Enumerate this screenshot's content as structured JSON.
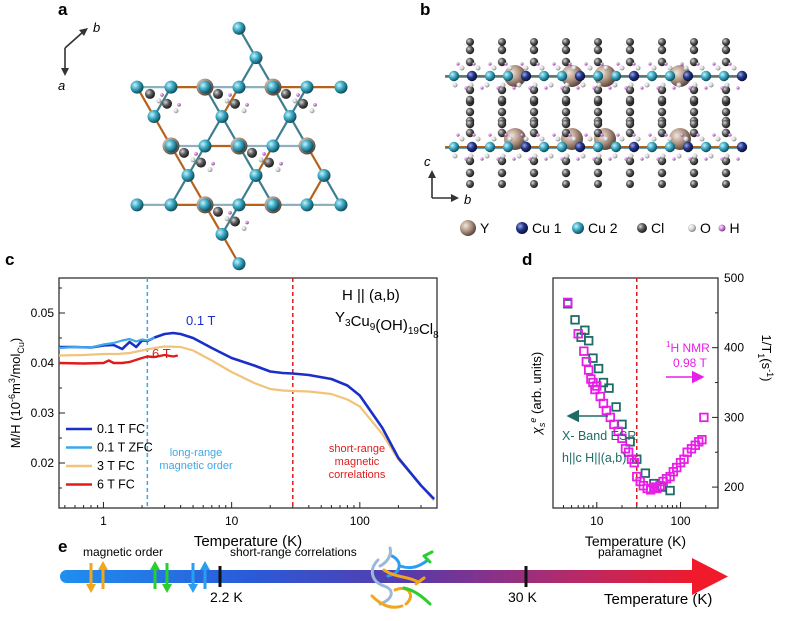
{
  "panels": {
    "a": {
      "letter": "a",
      "axes": {
        "b": "b",
        "a": "a"
      }
    },
    "b": {
      "letter": "b",
      "axes": {
        "c": "c",
        "b": "b"
      },
      "legend": [
        "Y",
        "Cu 1",
        "Cu 2",
        "Cl",
        "O",
        "H"
      ]
    },
    "c": {
      "letter": "c"
    },
    "d": {
      "letter": "d"
    },
    "e": {
      "letter": "e",
      "labels": {
        "magnetic_order": "magnetic order",
        "short_range": "short-range correlations",
        "paramagnet": "paramagnet",
        "t1": "2.2 K",
        "t2": "30 K",
        "axis": "Temperature (K)"
      }
    }
  },
  "colors": {
    "blue": "#1a2fc9",
    "lightblue": "#3da7e8",
    "tan": "#f0c47a",
    "red": "#e01b1b",
    "teal": "#1f6b66",
    "magenta": "#e81ee8",
    "cu1": "#1d2f7a",
    "cu2": "#3aa9c4",
    "y": "#a68c7a",
    "cl": "#555555",
    "o": "#cccccc",
    "h": "#c27bd0"
  },
  "chart_data": [
    {
      "panel": "c",
      "type": "line",
      "xscale": "log",
      "xlim": [
        0.45,
        400
      ],
      "ylim": [
        0.011,
        0.057
      ],
      "xticks": [
        1,
        10,
        100
      ],
      "xtick_labels": [
        "1",
        "10",
        "100"
      ],
      "yticks": [
        0.02,
        0.03,
        0.04,
        0.05
      ],
      "ytick_labels": [
        "0.02",
        "0.03",
        "0.04",
        "0.05"
      ],
      "xlabel": "Temperature (K)",
      "ylabel_main": "M/H (10",
      "ylabel_exp": "-6",
      "ylabel_mid": "m",
      "ylabel_exp2": "3",
      "ylabel_end": "/mol",
      "ylabel_sub": "Cu",
      "ylabel_close": ")",
      "title_line1": "H || (a,b)",
      "formula": "Y3Cu9(OH)19Cl8",
      "annotations": {
        "lro_line1": "long-range",
        "lro_line2": "magnetic order",
        "sro_line1": "short-range",
        "sro_line2": "magnetic",
        "sro_line3": "correlations",
        "label_01T": "0.1 T",
        "label_6T": "6 T"
      },
      "vlines": [
        2.2,
        30
      ],
      "legend": [
        "0.1 T FC",
        "0.1 T ZFC",
        "3 T FC",
        "6 T FC"
      ],
      "series": [
        {
          "name": "0.1 T FC",
          "x": [
            0.45,
            0.6,
            0.8,
            1.0,
            1.2,
            1.4,
            1.6,
            1.8,
            2.0,
            2.2,
            2.5,
            3.0,
            3.5,
            4.0,
            5.0,
            7.0,
            10.0,
            15.0,
            20.0,
            25.0,
            30.0,
            40.0,
            60.0,
            80.0,
            100.0,
            150.0,
            200.0,
            300.0,
            380.0
          ],
          "y": [
            0.0432,
            0.0432,
            0.0431,
            0.0435,
            0.0436,
            0.0428,
            0.0442,
            0.0432,
            0.0445,
            0.0444,
            0.0451,
            0.0458,
            0.046,
            0.0458,
            0.045,
            0.043,
            0.041,
            0.0395,
            0.0383,
            0.038,
            0.0379,
            0.0376,
            0.0368,
            0.0355,
            0.0335,
            0.027,
            0.021,
            0.0155,
            0.0128
          ]
        },
        {
          "name": "0.1 T ZFC",
          "x": [
            0.45,
            0.6,
            0.8,
            1.0,
            1.2,
            1.4,
            1.6,
            1.8,
            2.0,
            2.2,
            2.5
          ],
          "y": [
            0.043,
            0.0432,
            0.0431,
            0.0437,
            0.044,
            0.0445,
            0.0448,
            0.0443,
            0.0447,
            0.0445,
            0.0451
          ]
        },
        {
          "name": "3 T FC",
          "x": [
            0.45,
            0.7,
            1.0,
            1.3,
            1.6,
            2.0,
            2.5,
            3.0,
            4.0,
            5.0,
            7.0,
            10.0,
            15.0,
            20.0,
            25.0,
            30.0,
            40.0,
            60.0,
            80.0,
            100.0,
            150.0,
            200.0,
            300.0,
            380.0
          ],
          "y": [
            0.0415,
            0.0416,
            0.0418,
            0.0418,
            0.042,
            0.0425,
            0.043,
            0.0433,
            0.0432,
            0.0425,
            0.0405,
            0.0382,
            0.036,
            0.0348,
            0.0345,
            0.0344,
            0.0343,
            0.0338,
            0.0327,
            0.0313,
            0.0258,
            0.0207,
            0.0155,
            0.0125
          ]
        },
        {
          "name": "6 T FC",
          "x": [
            0.45,
            0.7,
            1.0,
            1.1,
            1.2,
            1.4,
            1.6,
            2.0,
            2.2,
            2.5,
            3.0,
            3.5,
            3.8
          ],
          "y": [
            0.04,
            0.0399,
            0.04,
            0.0405,
            0.04,
            0.04,
            0.0402,
            0.041,
            0.0413,
            0.0412,
            0.0416,
            0.0413,
            0.0415
          ]
        }
      ]
    },
    {
      "panel": "d",
      "type": "scatter",
      "xscale": "log",
      "xlim": [
        3,
        280
      ],
      "ylim_right": [
        170,
        500
      ],
      "xticks": [
        10,
        100
      ],
      "xtick_labels": [
        "10",
        "100"
      ],
      "yticks_right": [
        200,
        300,
        400,
        500
      ],
      "ytick_labels_right": [
        "200",
        "300",
        "400",
        "500"
      ],
      "xlabel": "Temperature (K)",
      "ylabel_left_main": "χ",
      "ylabel_left_sub": "s",
      "ylabel_left_sup": "e",
      "ylabel_left_rest": " (arb. units)",
      "ylabel_right_main": "1/T",
      "ylabel_right_sub": "1",
      "ylabel_right_rest": "(s",
      "ylabel_right_sup": "-1",
      "ylabel_right_close": ")",
      "vline": 30,
      "annotations": {
        "nmr_sup": "1",
        "nmr_line1": "H NMR",
        "nmr_line2": "0.98 T",
        "esr_line1": "X- Band ESR",
        "esr_line2": "h||c H||(a,b)"
      },
      "series": [
        {
          "name": "X- Band ESR",
          "x": [
            4.5,
            5.5,
            6.5,
            7.2,
            8.0,
            9.0,
            10.5,
            12.0,
            14.0,
            17.0,
            20.0,
            25.0,
            30.0,
            38.0,
            48.0,
            60.0,
            75.0
          ],
          "y": [
            463,
            440,
            415,
            425,
            410,
            385,
            370,
            350,
            342,
            315,
            290,
            265,
            240,
            220,
            205,
            200,
            195
          ]
        },
        {
          "name": "1H NMR",
          "x": [
            4.5,
            6.0,
            7.0,
            7.5,
            8.0,
            8.5,
            9.0,
            9.5,
            10.0,
            11.0,
            12.0,
            13.0,
            14.5,
            16.0,
            18.0,
            20.0,
            22.0,
            24.0,
            26.0,
            28.0,
            30.0,
            33.0,
            36.0,
            40.0,
            44.0,
            48.0,
            52.0,
            57.0,
            62.0,
            68.0,
            75.0,
            82.0,
            90.0,
            100.0,
            110.0,
            120.0,
            135.0,
            150.0,
            165.0,
            180.0,
            190.0
          ],
          "y": [
            465,
            420,
            395,
            380,
            368,
            355,
            350,
            340,
            345,
            330,
            320,
            310,
            300,
            290,
            280,
            270,
            255,
            250,
            240,
            235,
            215,
            208,
            202,
            198,
            196,
            200,
            198,
            202,
            208,
            212,
            215,
            222,
            228,
            235,
            240,
            250,
            255,
            260,
            265,
            268,
            300
          ]
        }
      ]
    }
  ]
}
